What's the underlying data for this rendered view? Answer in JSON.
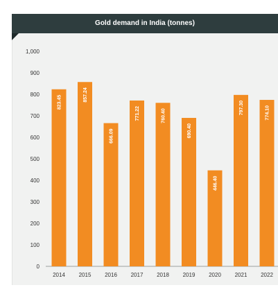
{
  "chart_data": {
    "type": "bar",
    "title": "Gold demand in India (tonnes)",
    "categories": [
      "2014",
      "2015",
      "2016",
      "2017",
      "2018",
      "2019",
      "2020",
      "2021",
      "2022"
    ],
    "values": [
      823.45,
      857.24,
      666.09,
      771.22,
      760.4,
      690.4,
      446.4,
      797.3,
      774.1
    ],
    "labels": [
      "823.45",
      "857.24",
      "666.09",
      "771.22",
      "760.40",
      "690.40",
      "446.40",
      "797.30",
      "774.10"
    ],
    "ylim": [
      0,
      1000
    ],
    "yticks": [
      "0",
      "100",
      "200",
      "300",
      "400",
      "500",
      "600",
      "700",
      "800",
      "900",
      "1,000"
    ],
    "xlabel": "",
    "ylabel": "",
    "grid": false,
    "bar_color": "#f28c22",
    "last_label_color": "#ffd23c"
  }
}
